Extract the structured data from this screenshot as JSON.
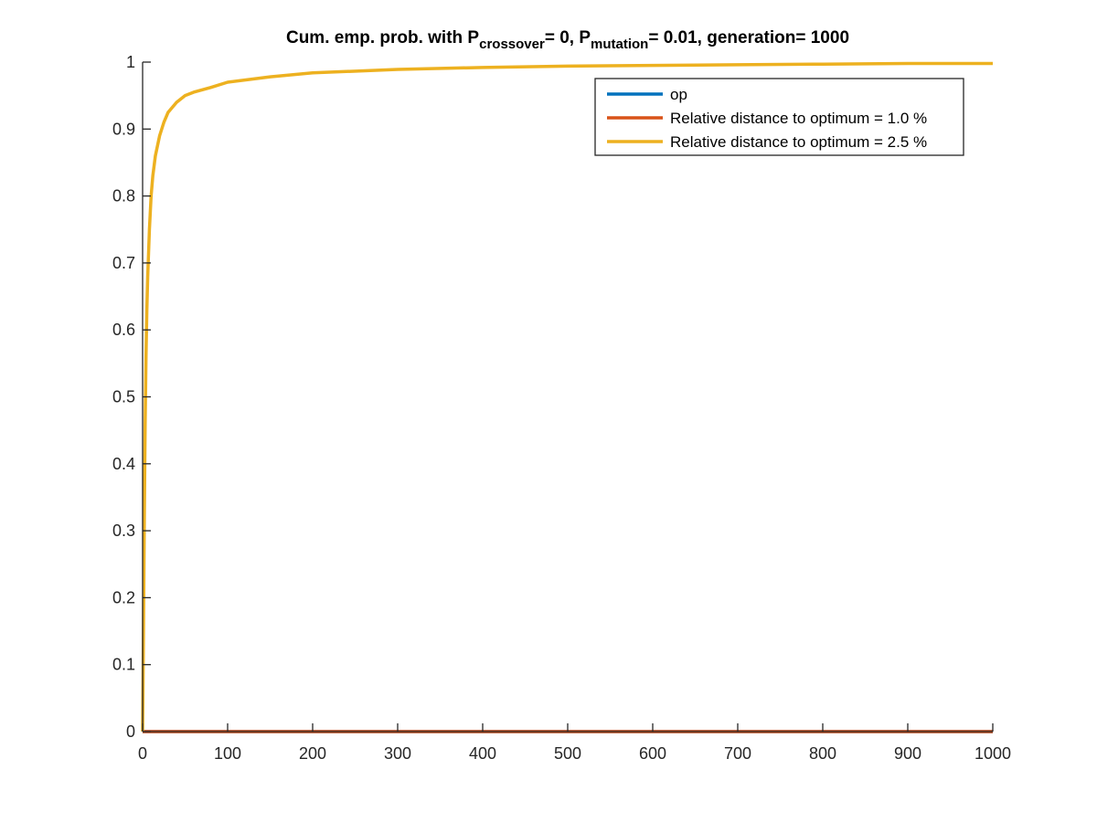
{
  "chart_data": {
    "type": "line",
    "title": {
      "prefix": "Cum. emp. prob. with P",
      "sub1": "crossover",
      "middle": "= 0, P",
      "sub2": "mutation",
      "suffix": "= 0.01, generation= 1000"
    },
    "xlabel": "",
    "ylabel": "",
    "xlim": [
      0,
      1000
    ],
    "ylim": [
      0,
      1
    ],
    "xticks": [
      0,
      100,
      200,
      300,
      400,
      500,
      600,
      700,
      800,
      900,
      1000
    ],
    "xtick_labels": [
      "0",
      "100",
      "200",
      "300",
      "400",
      "500",
      "600",
      "700",
      "800",
      "900",
      "1000"
    ],
    "yticks": [
      0,
      0.1,
      0.2,
      0.3,
      0.4,
      0.5,
      0.6,
      0.7,
      0.8,
      0.9,
      1
    ],
    "ytick_labels": [
      "0",
      "0.1",
      "0.2",
      "0.3",
      "0.4",
      "0.5",
      "0.6",
      "0.7",
      "0.8",
      "0.9",
      "1"
    ],
    "grid": false,
    "legend_position": "top-right",
    "series": [
      {
        "name": "op",
        "color": "#0072BD",
        "x": [
          0,
          1000
        ],
        "y": [
          0,
          0
        ]
      },
      {
        "name": "Relative distance to optimum = 1.0 %",
        "color": "#D95319",
        "x": [
          0,
          1000
        ],
        "y": [
          0,
          0
        ]
      },
      {
        "name": "Relative distance to optimum = 2.5 %",
        "color": "#EDB120",
        "x": [
          0,
          1,
          2,
          3,
          4,
          5,
          6,
          8,
          10,
          12,
          15,
          20,
          25,
          30,
          40,
          50,
          60,
          80,
          100,
          150,
          200,
          300,
          400,
          500,
          600,
          700,
          800,
          900,
          1000
        ],
        "y": [
          0,
          0.15,
          0.32,
          0.46,
          0.56,
          0.63,
          0.68,
          0.75,
          0.8,
          0.83,
          0.86,
          0.89,
          0.91,
          0.925,
          0.94,
          0.95,
          0.955,
          0.962,
          0.97,
          0.978,
          0.984,
          0.989,
          0.992,
          0.994,
          0.995,
          0.996,
          0.997,
          0.998,
          0.998
        ]
      }
    ]
  }
}
